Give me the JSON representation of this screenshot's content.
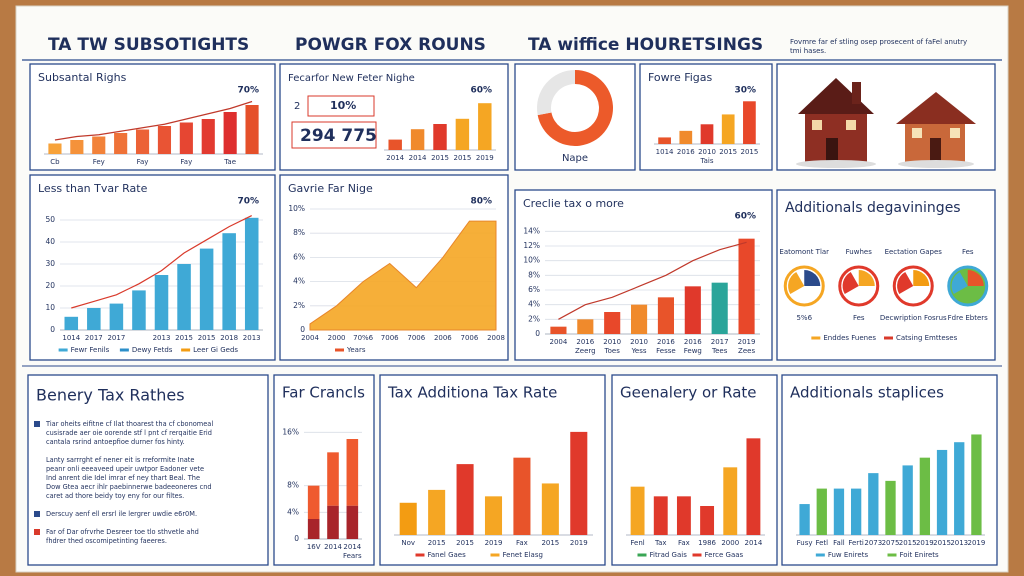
{
  "header": {
    "titles": [
      "TA TW SUBSOTIGHTS",
      "POWGR FOX ROUNS",
      "TA wiffice HOURETSINGS"
    ],
    "note": [
      "Fovmre far ef stling osep prosecent of faFel anutry",
      "tmi hases."
    ]
  },
  "text_panel": {
    "title": "Benery Tax Rathes",
    "paragraphs": [
      {
        "color": "#2b4a8b",
        "lines": [
          "Tiar oheits eifitne cf Ilat thoarest tha cf cbonomeal",
          "cusisrade aer oie oorende stf l pnt cf rerqaitie Erid",
          "cantala rsrind antoepfioe durner fos hinty."
        ]
      },
      {
        "color": null,
        "lines": [
          "Lanty sarrrght ef nener eit is rreformite Inate",
          "peanr onli eeeaveed upeir uwtpor Eadoner vete",
          "Ind anrent die Idel imrar ef ney thart Beal. The",
          "Dow Gtea aecr ihlr paebinnerwe badeeoneres cnd",
          "caret ad thore beidy toy eny for our filtes."
        ]
      },
      {
        "color": "#2b4a8b",
        "lines": [
          "Derscuy aenf ell ersrl ile lergrer uwdie e6r0M."
        ]
      },
      {
        "color": "#d93a2b",
        "lines": [
          "Far of Dar ofrvrhe Desreer toe tlo sthvetle ahd",
          "fhdrer thed oscomipetinting faeeres."
        ]
      }
    ]
  },
  "chart_data": [
    {
      "type": "bar",
      "title": "Subsantal Righs",
      "annotation": "70%",
      "categories": [
        "Cb",
        null,
        "Fey",
        null,
        "Fay",
        null,
        "Fay",
        null,
        "Tae",
        null
      ],
      "values": [
        3,
        4,
        5,
        6,
        7,
        8,
        9,
        10,
        12,
        14
      ],
      "colors": [
        "#f7a23a",
        "#f5923a",
        "#f2823a",
        "#ef7238",
        "#ec6236",
        "#e95434",
        "#e64632",
        "#e23a30",
        "#de2f2e",
        "#e5502a"
      ],
      "line": {
        "color": "#c0392b",
        "values": [
          4,
          5,
          5.5,
          6.5,
          7.5,
          8.5,
          10,
          11.5,
          13,
          15
        ]
      },
      "ylim": [
        0,
        16
      ]
    },
    {
      "type": "stats",
      "title": "Fecarfor New Feter Nighe",
      "stat_labels": [
        "2",
        "10%",
        "294 775"
      ],
      "annotation": "60%",
      "categories": [
        "2014",
        "2014",
        "2015",
        "2015",
        "2019"
      ],
      "values": [
        2,
        4,
        5,
        6,
        9
      ],
      "colors": [
        "#e8542a",
        "#f08a2c",
        "#e0392b",
        "#f5a623",
        "#f5a623"
      ],
      "ylim": [
        0,
        10
      ]
    },
    {
      "type": "donut",
      "label": "Nape",
      "values": [
        72,
        28
      ],
      "colors": [
        "#ec5a2a",
        "#e6e6e6"
      ]
    },
    {
      "type": "bar",
      "title": "Fowre Figas",
      "annotation": "30%",
      "categories": [
        "1014",
        "2016",
        "2010",
        "2015",
        "2015"
      ],
      "categories2": [
        null,
        null,
        "Tais",
        null,
        null
      ],
      "values": [
        2,
        4,
        6,
        9,
        13
      ],
      "colors": [
        "#e8542a",
        "#f08a2c",
        "#e0392b",
        "#f5a623",
        "#e8482a"
      ],
      "ylim": [
        0,
        14
      ]
    },
    {
      "type": "bar",
      "title": "Less than Tvar Rate",
      "annotation": "70%",
      "categories": [
        "1014",
        "2017",
        "2017",
        null,
        "2013",
        "2015",
        "2015",
        "2018",
        "2013"
      ],
      "values": [
        6,
        10,
        12,
        18,
        25,
        30,
        37,
        44,
        51
      ],
      "color": "#3fa9d6",
      "line": {
        "color": "#d93a2b",
        "values": [
          10,
          13,
          16,
          21,
          27,
          35,
          41,
          47,
          52
        ]
      },
      "ylim": [
        0,
        55
      ],
      "yticks": [
        0,
        10,
        20,
        30,
        40,
        50
      ],
      "legend": [
        "Fewr Fenils",
        "Dewy Fetds",
        "Leer Gi Geds"
      ],
      "legend_colors": [
        "#3fa9d6",
        "#2c8fc9",
        "#f39c12"
      ]
    },
    {
      "type": "area",
      "title": "Gavrie Far Nige",
      "annotation": "80%",
      "categories": [
        "2004",
        "2000",
        "70%6",
        "7006",
        "7006",
        "2006",
        "7006",
        "2008"
      ],
      "values": [
        0.5,
        2,
        4,
        5.5,
        3.5,
        6,
        9,
        9
      ],
      "color": "#f5a623",
      "ylim": [
        0,
        10
      ],
      "yticks": [
        0,
        {
          "value": 2,
          "label": "2%"
        },
        {
          "value": 4,
          "label": "4%"
        },
        {
          "value": 6,
          "label": "6%"
        },
        {
          "value": 8,
          "label": "8%"
        },
        {
          "value": 10,
          "label": "10%"
        }
      ],
      "legend": [
        "Years"
      ],
      "legend_colors": [
        "#e8542a"
      ]
    },
    {
      "type": "bar",
      "title": "Creclie tax o more",
      "annotation": "60%",
      "categories": [
        "2004",
        "2016",
        "2010",
        "2010",
        "2016",
        "2016",
        "2017",
        "2019"
      ],
      "categories2": [
        null,
        "Zeerg",
        "Toes",
        "Yess",
        "Fesse",
        "Fewg",
        "Tees",
        "Zees"
      ],
      "values": [
        1,
        2,
        3,
        4,
        5,
        6.5,
        7,
        13
      ],
      "colors": [
        "#e8542a",
        "#f08a2c",
        "#e8482a",
        "#f08a2c",
        "#e8542a",
        "#e0392b",
        "#2aa59a",
        "#e8482a"
      ],
      "line": {
        "color": "#c0392b",
        "values": [
          2,
          4,
          5,
          6.5,
          8,
          10,
          11.5,
          12.5
        ]
      },
      "ylim": [
        0,
        15
      ],
      "yticks": [
        0,
        {
          "value": 2,
          "label": "2%"
        },
        {
          "value": 4,
          "label": "4%"
        },
        {
          "value": 6,
          "label": "6%"
        },
        {
          "value": 8,
          "label": "8%"
        },
        {
          "value": 10,
          "label": "10%"
        },
        {
          "value": 12,
          "label": "12%"
        },
        {
          "value": 14,
          "label": "14%"
        }
      ]
    },
    {
      "type": "icons",
      "title": "Additionals degavininges",
      "headings": [
        "Eatomont Tlar",
        "Fuwhes",
        "Eectation Gapes",
        "Fes"
      ],
      "captions": [
        "5%6",
        "Fes",
        "Decwription Fosrus",
        "Fdre Ebters"
      ],
      "legend": [
        "Enddes Fuenes",
        "Catsing Emtteses"
      ],
      "legend_colors": [
        "#f5a623",
        "#d93a2b"
      ]
    },
    {
      "type": "stacked",
      "title": "Far Crancls",
      "categories": [
        "16V",
        "2014",
        "2014"
      ],
      "categories2": [
        null,
        null,
        "Fears"
      ],
      "series": [
        {
          "color": "#a8242a",
          "values": [
            3,
            5,
            5
          ]
        },
        {
          "color": "#ef5a2f",
          "values": [
            5,
            8,
            10
          ]
        }
      ],
      "ylim": [
        0,
        18
      ],
      "yticks": [
        0,
        {
          "value": 4,
          "label": "4%"
        },
        {
          "value": 8,
          "label": "8%"
        },
        {
          "value": 16,
          "label": "16%"
        }
      ]
    },
    {
      "type": "bar",
      "title": "Tax Additiona Tax Rate",
      "categories": [
        "Nov",
        "2015",
        "2015",
        "2019",
        "Fax",
        "2015",
        "2019"
      ],
      "values": [
        5,
        7,
        11,
        6,
        12,
        8,
        16
      ],
      "colors": [
        "#f39c12",
        "#f5a623",
        "#e0392b",
        "#f5a623",
        "#e8542a",
        "#f5a623",
        "#e0392b"
      ],
      "ylim": [
        0,
        18
      ],
      "legend": [
        "Fanel Gaes",
        "Fenet Elasg"
      ],
      "legend_colors": [
        "#e0392b",
        "#f5a623"
      ]
    },
    {
      "type": "bar",
      "title": "Geenalery or Rate",
      "categories": [
        "Fenl",
        "Tax",
        "Fax",
        "1986",
        "2000",
        "2014"
      ],
      "values": [
        5,
        4,
        4,
        3,
        7,
        10
      ],
      "colors": [
        "#f5a623",
        "#e0392b",
        "#e0392b",
        "#e0392b",
        "#f5a623",
        "#e0392b"
      ],
      "ylim": [
        0,
        12
      ],
      "legend": [
        "Fitrad Gais",
        "Ferce Gaas"
      ],
      "legend_colors": [
        "#3aa655",
        "#e0392b"
      ]
    },
    {
      "type": "bar",
      "title": "Additionals staplices",
      "categories": [
        "Fusy",
        "Fetl",
        "Fall",
        "Ferti",
        "2073",
        "2075",
        "2015",
        "2019",
        "2015",
        "2013",
        "2019"
      ],
      "values": [
        4,
        6,
        6,
        6,
        8,
        7,
        9,
        10,
        11,
        12,
        13
      ],
      "colors": [
        "#3fa9d6",
        "#6cbd45",
        "#3fa9d6",
        "#3fa9d6",
        "#3fa9d6",
        "#6cbd45",
        "#3fa9d6",
        "#6cbd45",
        "#3fa9d6",
        "#3fa9d6",
        "#6cbd45"
      ],
      "ylim": [
        0,
        15
      ],
      "legend": [
        "Fuw Enirets",
        "Foit Enirets"
      ],
      "legend_colors": [
        "#3fa9d6",
        "#6cbd45"
      ]
    }
  ]
}
